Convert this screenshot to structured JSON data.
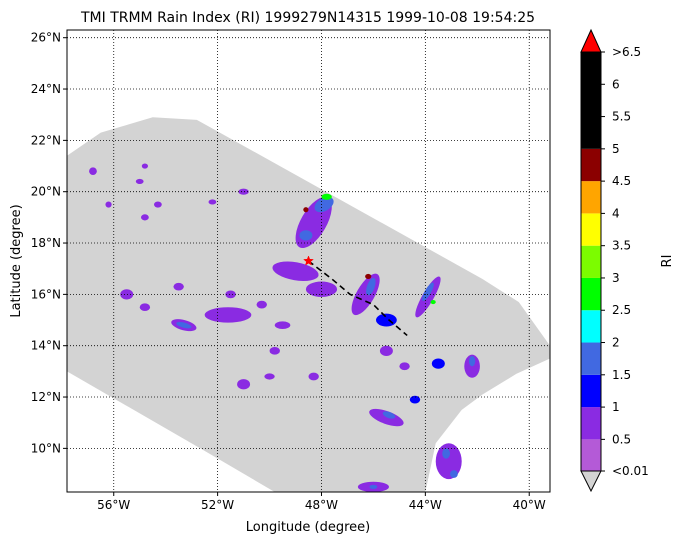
{
  "chart_data": {
    "type": "heatmap",
    "title": "TMI TRMM Rain Index (RI) 1999279N14315 1999-10-08 19:54:25",
    "xlabel": "Longitude (degree)",
    "ylabel": "Latitude (degree)",
    "xlim": [
      -57.8,
      -39.2
    ],
    "ylim": [
      8.3,
      26.3
    ],
    "grid": true,
    "x_ticks": [
      {
        "value": -56,
        "label": "56°W"
      },
      {
        "value": -52,
        "label": "52°W"
      },
      {
        "value": -48,
        "label": "48°W"
      },
      {
        "value": -44,
        "label": "44°W"
      },
      {
        "value": -40,
        "label": "40°W"
      }
    ],
    "y_ticks": [
      {
        "value": 10,
        "label": "10°N"
      },
      {
        "value": 12,
        "label": "12°N"
      },
      {
        "value": 14,
        "label": "14°N"
      },
      {
        "value": 16,
        "label": "16°N"
      },
      {
        "value": 18,
        "label": "18°N"
      },
      {
        "value": 20,
        "label": "20°N"
      },
      {
        "value": 22,
        "label": "22°N"
      },
      {
        "value": 24,
        "label": "24°N"
      },
      {
        "value": 26,
        "label": "26°N"
      }
    ],
    "swath_color": "#d3d3d3",
    "swath_polygon": [
      [
        -57.8,
        21.4
      ],
      [
        -56.5,
        22.3
      ],
      [
        -54.5,
        22.9
      ],
      [
        -52.8,
        22.8
      ],
      [
        -41.8,
        16.6
      ],
      [
        -40.4,
        15.7
      ],
      [
        -39.2,
        14.0
      ],
      [
        -39.2,
        13.5
      ],
      [
        -40.5,
        12.9
      ],
      [
        -41.8,
        12.1
      ],
      [
        -42.6,
        11.5
      ],
      [
        -43.6,
        10.2
      ],
      [
        -44.0,
        8.3
      ],
      [
        -49.8,
        8.3
      ],
      [
        -52.5,
        9.9
      ],
      [
        -57.8,
        13.0
      ]
    ],
    "rain_cells": [
      {
        "lon": -48.3,
        "lat": 18.8,
        "rx": 1.1,
        "ry": 0.5,
        "rot": 60,
        "level": 1
      },
      {
        "lon": -47.9,
        "lat": 19.5,
        "rx": 0.4,
        "ry": 0.25,
        "rot": 30,
        "level": 3
      },
      {
        "lon": -48.6,
        "lat": 18.3,
        "rx": 0.25,
        "ry": 0.2,
        "rot": 0,
        "level": 3
      },
      {
        "lon": -47.8,
        "lat": 19.8,
        "rx": 0.2,
        "ry": 0.12,
        "rot": 0,
        "level": 5
      },
      {
        "lon": -49.0,
        "lat": 16.9,
        "rx": 0.9,
        "ry": 0.35,
        "rot": -10,
        "level": 1
      },
      {
        "lon": -48.0,
        "lat": 16.2,
        "rx": 0.6,
        "ry": 0.3,
        "rot": 0,
        "level": 1
      },
      {
        "lon": -46.3,
        "lat": 16.0,
        "rx": 0.9,
        "ry": 0.35,
        "rot": 60,
        "level": 1
      },
      {
        "lon": -46.1,
        "lat": 16.3,
        "rx": 0.35,
        "ry": 0.15,
        "rot": 70,
        "level": 3
      },
      {
        "lon": -46.2,
        "lat": 16.7,
        "rx": 0.12,
        "ry": 0.1,
        "rot": 0,
        "level": 9
      },
      {
        "lon": -45.5,
        "lat": 15.0,
        "rx": 0.4,
        "ry": 0.25,
        "rot": 0,
        "level": 2
      },
      {
        "lon": -43.9,
        "lat": 15.9,
        "rx": 0.9,
        "ry": 0.22,
        "rot": 60,
        "level": 1
      },
      {
        "lon": -43.9,
        "lat": 16.1,
        "rx": 0.4,
        "ry": 0.12,
        "rot": 60,
        "level": 3
      },
      {
        "lon": -43.7,
        "lat": 15.7,
        "rx": 0.1,
        "ry": 0.08,
        "rot": 0,
        "level": 5
      },
      {
        "lon": -53.3,
        "lat": 14.8,
        "rx": 0.5,
        "ry": 0.2,
        "rot": -15,
        "level": 1
      },
      {
        "lon": -53.3,
        "lat": 14.8,
        "rx": 0.3,
        "ry": 0.1,
        "rot": -15,
        "level": 3
      },
      {
        "lon": -51.6,
        "lat": 15.2,
        "rx": 0.9,
        "ry": 0.3,
        "rot": 0,
        "level": 1
      },
      {
        "lon": -49.5,
        "lat": 14.8,
        "rx": 0.3,
        "ry": 0.15,
        "rot": 0,
        "level": 1
      },
      {
        "lon": -42.2,
        "lat": 13.2,
        "rx": 0.3,
        "ry": 0.45,
        "rot": 0,
        "level": 1
      },
      {
        "lon": -42.2,
        "lat": 13.4,
        "rx": 0.12,
        "ry": 0.2,
        "rot": 0,
        "level": 3
      },
      {
        "lon": -43.5,
        "lat": 13.3,
        "rx": 0.25,
        "ry": 0.2,
        "rot": 0,
        "level": 2
      },
      {
        "lon": -45.5,
        "lat": 13.8,
        "rx": 0.25,
        "ry": 0.2,
        "rot": 0,
        "level": 1
      },
      {
        "lon": -44.8,
        "lat": 13.2,
        "rx": 0.2,
        "ry": 0.15,
        "rot": 0,
        "level": 1
      },
      {
        "lon": -45.5,
        "lat": 11.2,
        "rx": 0.7,
        "ry": 0.25,
        "rot": -20,
        "level": 1
      },
      {
        "lon": -45.4,
        "lat": 11.3,
        "rx": 0.25,
        "ry": 0.12,
        "rot": -20,
        "level": 3
      },
      {
        "lon": -44.4,
        "lat": 11.9,
        "rx": 0.2,
        "ry": 0.15,
        "rot": 0,
        "level": 2
      },
      {
        "lon": -43.1,
        "lat": 9.5,
        "rx": 0.5,
        "ry": 0.7,
        "rot": 0,
        "level": 1
      },
      {
        "lon": -43.2,
        "lat": 9.8,
        "rx": 0.15,
        "ry": 0.2,
        "rot": 0,
        "level": 3
      },
      {
        "lon": -42.9,
        "lat": 9.0,
        "rx": 0.15,
        "ry": 0.15,
        "rot": 0,
        "level": 3
      },
      {
        "lon": -46.0,
        "lat": 8.5,
        "rx": 0.6,
        "ry": 0.2,
        "rot": 0,
        "level": 1
      },
      {
        "lon": -46.0,
        "lat": 8.5,
        "rx": 0.15,
        "ry": 0.08,
        "rot": 0,
        "level": 3
      },
      {
        "lon": -51.0,
        "lat": 12.5,
        "rx": 0.25,
        "ry": 0.2,
        "rot": 0,
        "level": 1
      },
      {
        "lon": -49.8,
        "lat": 13.8,
        "rx": 0.2,
        "ry": 0.15,
        "rot": 0,
        "level": 1
      },
      {
        "lon": -48.3,
        "lat": 12.8,
        "rx": 0.2,
        "ry": 0.15,
        "rot": 0,
        "level": 1
      },
      {
        "lon": -50.0,
        "lat": 12.8,
        "rx": 0.2,
        "ry": 0.12,
        "rot": 0,
        "level": 1
      },
      {
        "lon": -55.5,
        "lat": 16.0,
        "rx": 0.25,
        "ry": 0.2,
        "rot": 0,
        "level": 1
      },
      {
        "lon": -54.8,
        "lat": 15.5,
        "rx": 0.2,
        "ry": 0.15,
        "rot": 0,
        "level": 1
      },
      {
        "lon": -53.5,
        "lat": 16.3,
        "rx": 0.2,
        "ry": 0.15,
        "rot": 0,
        "level": 1
      },
      {
        "lon": -51.5,
        "lat": 16.0,
        "rx": 0.2,
        "ry": 0.15,
        "rot": 0,
        "level": 1
      },
      {
        "lon": -50.3,
        "lat": 15.6,
        "rx": 0.2,
        "ry": 0.15,
        "rot": 0,
        "level": 1
      },
      {
        "lon": -56.8,
        "lat": 20.8,
        "rx": 0.15,
        "ry": 0.15,
        "rot": 0,
        "level": 1
      },
      {
        "lon": -55.0,
        "lat": 20.4,
        "rx": 0.15,
        "ry": 0.1,
        "rot": 0,
        "level": 1
      },
      {
        "lon": -54.8,
        "lat": 21.0,
        "rx": 0.12,
        "ry": 0.1,
        "rot": 0,
        "level": 1
      },
      {
        "lon": -54.3,
        "lat": 19.5,
        "rx": 0.15,
        "ry": 0.12,
        "rot": 0,
        "level": 1
      },
      {
        "lon": -54.8,
        "lat": 19.0,
        "rx": 0.15,
        "ry": 0.12,
        "rot": 0,
        "level": 1
      },
      {
        "lon": -51.0,
        "lat": 20.0,
        "rx": 0.2,
        "ry": 0.12,
        "rot": 0,
        "level": 1
      },
      {
        "lon": -52.2,
        "lat": 19.6,
        "rx": 0.15,
        "ry": 0.1,
        "rot": 0,
        "level": 1
      },
      {
        "lon": -56.2,
        "lat": 19.5,
        "rx": 0.12,
        "ry": 0.12,
        "rot": 0,
        "level": 1
      },
      {
        "lon": -48.6,
        "lat": 19.3,
        "rx": 0.1,
        "ry": 0.1,
        "rot": 0,
        "level": 9
      }
    ],
    "track": [
      [
        -48.5,
        17.3
      ],
      [
        -47.6,
        16.6
      ],
      [
        -46.9,
        16.0
      ],
      [
        -46.0,
        15.6
      ],
      [
        -45.4,
        15.0
      ],
      [
        -44.7,
        14.4
      ]
    ],
    "track_color": "#000000",
    "center_marker": {
      "lon": -48.5,
      "lat": 17.3,
      "color": "#ff0000"
    },
    "colorbar": {
      "label": "RI",
      "under_label": "<0.01",
      "over_label": ">6.5",
      "under_color": "#d3d3d3",
      "over_color": "#ff0000",
      "levels": [
        {
          "lo": 0.01,
          "hi": 0.5,
          "color": "#b45ad7"
        },
        {
          "lo": 0.5,
          "hi": 1,
          "color": "#8a2be2"
        },
        {
          "lo": 1,
          "hi": 1.5,
          "color": "#0000ff"
        },
        {
          "lo": 1.5,
          "hi": 2,
          "color": "#4169e1"
        },
        {
          "lo": 2,
          "hi": 2.5,
          "color": "#00ffff"
        },
        {
          "lo": 2.5,
          "hi": 3,
          "color": "#00ff00"
        },
        {
          "lo": 3,
          "hi": 3.5,
          "color": "#7cfc00"
        },
        {
          "lo": 3.5,
          "hi": 4,
          "color": "#ffff00"
        },
        {
          "lo": 4,
          "hi": 4.5,
          "color": "#ffa500"
        },
        {
          "lo": 4.5,
          "hi": 5,
          "color": "#8b0000"
        },
        {
          "lo": 5,
          "hi": 6.5,
          "color": "#000000"
        }
      ],
      "tick_labels": [
        {
          "value": 0.01,
          "label": "<0.01"
        },
        {
          "value": 0.5,
          "label": "0.5"
        },
        {
          "value": 1,
          "label": "1"
        },
        {
          "value": 1.5,
          "label": "1.5"
        },
        {
          "value": 2,
          "label": "2"
        },
        {
          "value": 2.5,
          "label": "2.5"
        },
        {
          "value": 3,
          "label": "3"
        },
        {
          "value": 3.5,
          "label": "3.5"
        },
        {
          "value": 4,
          "label": "4"
        },
        {
          "value": 4.5,
          "label": "4.5"
        },
        {
          "value": 5,
          "label": "5"
        },
        {
          "value": 5.5,
          "label": "5.5"
        },
        {
          "value": 6,
          "label": "6"
        },
        {
          "value": 6.5,
          "label": ">6.5"
        }
      ]
    }
  }
}
